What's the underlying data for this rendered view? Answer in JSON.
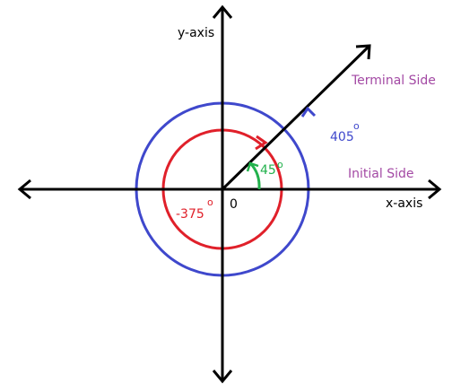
{
  "labels": {
    "y_axis": "y-axis",
    "x_axis": "x-axis",
    "origin": "0",
    "terminal_side": "Terminal Side",
    "initial_side": "Initial Side",
    "angle_405": "405",
    "angle_45": "45",
    "angle_neg375": "-375",
    "degree_symbol": "o"
  },
  "colors": {
    "axes": "#000000",
    "terminal_ray": "#000000",
    "outer_circle": "#3f48cc",
    "inner_circle": "#e0202a",
    "angle_45_arc": "#22b14c",
    "label_405": "#3f48cc",
    "label_45": "#22b14c",
    "label_neg375": "#e0202a",
    "side_labels": "#a349a4",
    "text": "#000000"
  }
}
